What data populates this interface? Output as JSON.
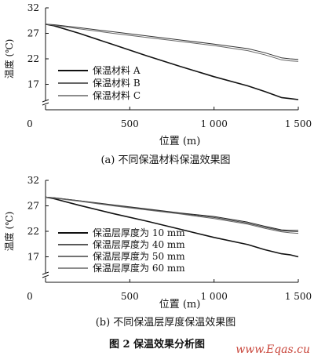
{
  "figure_caption": "图 2   保温效果分析图",
  "watermark": "www.Eqas.cu",
  "chart_data": [
    {
      "type": "line",
      "panel": "a",
      "title": "(a) 不同保温材料保温效果图",
      "xlabel": "位置 (m)",
      "ylabel": "温度 (℃)",
      "xlim": [
        0,
        1500
      ],
      "ylim": [
        12,
        32
      ],
      "x_ticks": [
        0,
        500,
        1000,
        1500
      ],
      "x_tick_labels": [
        "0",
        "500",
        "1 000",
        "1 500"
      ],
      "y_ticks": [
        17,
        22,
        27,
        32
      ],
      "y_tick_labels": [
        "17",
        "22",
        "27",
        "32"
      ],
      "axis_break": true,
      "grid": false,
      "legend_position": "center-left",
      "series": [
        {
          "name": "保温材料 A",
          "color": "#111111",
          "width": 1.6,
          "x": [
            0,
            50,
            200,
            400,
            600,
            800,
            1000,
            1200,
            1300,
            1400,
            1450,
            1500
          ],
          "values": [
            28.8,
            28.5,
            27.0,
            24.8,
            22.6,
            20.5,
            18.5,
            16.7,
            15.6,
            14.4,
            14.2,
            14.0
          ]
        },
        {
          "name": "保温材料 B",
          "color": "#333333",
          "width": 1.0,
          "x": [
            0,
            50,
            200,
            400,
            600,
            800,
            1000,
            1200,
            1300,
            1400,
            1450,
            1500
          ],
          "values": [
            28.8,
            28.7,
            28.1,
            27.3,
            26.5,
            25.7,
            24.9,
            24.0,
            23.2,
            22.2,
            22.0,
            21.9
          ]
        },
        {
          "name": "保温材料 C",
          "color": "#666666",
          "width": 1.0,
          "x": [
            0,
            50,
            200,
            400,
            600,
            800,
            1000,
            1200,
            1300,
            1400,
            1450,
            1500
          ],
          "values": [
            28.8,
            28.6,
            27.9,
            27.0,
            26.2,
            25.4,
            24.6,
            23.6,
            22.8,
            21.8,
            21.6,
            21.5
          ]
        }
      ]
    },
    {
      "type": "line",
      "panel": "b",
      "title": "(b) 不同保温层厚度保温效果图",
      "xlabel": "位置 (m)",
      "ylabel": "温度 (℃)",
      "xlim": [
        0,
        1500
      ],
      "ylim": [
        12,
        32
      ],
      "x_ticks": [
        0,
        500,
        1000,
        1500
      ],
      "x_tick_labels": [
        "0",
        "500",
        "1 000",
        "1 500"
      ],
      "y_ticks": [
        17,
        22,
        27,
        32
      ],
      "y_tick_labels": [
        "17",
        "22",
        "27",
        "32"
      ],
      "axis_break": true,
      "grid": false,
      "legend_position": "center-left",
      "series": [
        {
          "name": "保温层厚度为 10 mm",
          "color": "#111111",
          "width": 1.6,
          "x": [
            0,
            50,
            200,
            400,
            600,
            800,
            1000,
            1200,
            1300,
            1400,
            1450,
            1500
          ],
          "values": [
            28.7,
            28.4,
            27.1,
            25.5,
            24.0,
            22.4,
            20.8,
            19.4,
            18.4,
            17.6,
            17.4,
            17.0
          ]
        },
        {
          "name": "保温层厚度为 40 mm",
          "color": "#222222",
          "width": 1.0,
          "x": [
            0,
            50,
            200,
            400,
            600,
            800,
            1000,
            1200,
            1300,
            1400,
            1450,
            1500
          ],
          "values": [
            28.7,
            28.6,
            28.0,
            27.2,
            26.4,
            25.6,
            24.9,
            23.8,
            23.0,
            22.3,
            22.2,
            22.2
          ]
        },
        {
          "name": "保温层厚度为 50 mm",
          "color": "#444444",
          "width": 1.0,
          "x": [
            0,
            50,
            200,
            400,
            600,
            800,
            1000,
            1200,
            1300,
            1400,
            1450,
            1500
          ],
          "values": [
            28.7,
            28.6,
            28.0,
            27.1,
            26.3,
            25.5,
            24.7,
            23.6,
            22.8,
            22.1,
            22.0,
            21.9
          ]
        },
        {
          "name": "保温层厚度为 60 mm",
          "color": "#666666",
          "width": 1.0,
          "x": [
            0,
            50,
            200,
            400,
            600,
            800,
            1000,
            1200,
            1300,
            1400,
            1450,
            1500
          ],
          "values": [
            28.7,
            28.5,
            27.9,
            27.0,
            26.2,
            25.4,
            24.5,
            23.4,
            22.6,
            21.9,
            21.7,
            21.6
          ]
        }
      ]
    }
  ]
}
